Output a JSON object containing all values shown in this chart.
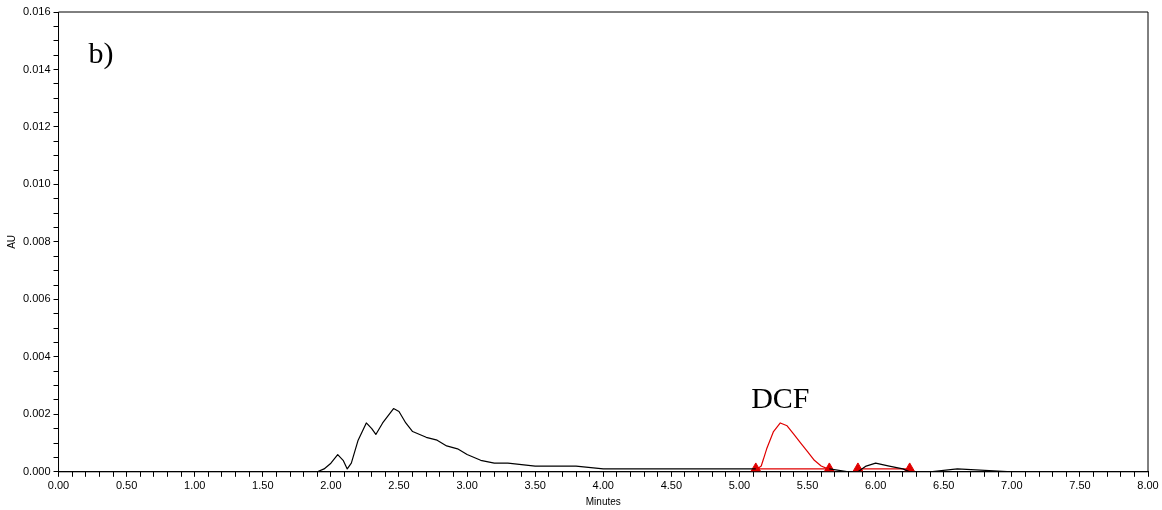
{
  "chart_data": {
    "type": "line",
    "xlabel": "Minutes",
    "ylabel": "AU",
    "annotations": [
      "b)",
      {
        "text": "DCF",
        "x": 5.3,
        "y": 0.0017
      }
    ],
    "xlim": [
      0,
      8
    ],
    "ylim": [
      0,
      0.016
    ],
    "grid": false,
    "legend": false,
    "marker": "none",
    "line_style": "solid",
    "xticks": [
      {
        "value": 0,
        "label": "0.00"
      },
      {
        "value": 0.1,
        "label": null
      },
      {
        "value": 0.2,
        "label": null
      },
      {
        "value": 0.3,
        "label": null
      },
      {
        "value": 0.4,
        "label": null
      },
      {
        "value": 0.5,
        "label": "0.50"
      },
      {
        "value": 0.6,
        "label": null
      },
      {
        "value": 0.7,
        "label": null
      },
      {
        "value": 0.8,
        "label": null
      },
      {
        "value": 0.9,
        "label": null
      },
      {
        "value": 1,
        "label": "1.00"
      },
      {
        "value": 1.1,
        "label": null
      },
      {
        "value": 1.2,
        "label": null
      },
      {
        "value": 1.3,
        "label": null
      },
      {
        "value": 1.4,
        "label": null
      },
      {
        "value": 1.5,
        "label": "1.50"
      },
      {
        "value": 1.6,
        "label": null
      },
      {
        "value": 1.7,
        "label": null
      },
      {
        "value": 1.8,
        "label": null
      },
      {
        "value": 1.9,
        "label": null
      },
      {
        "value": 2,
        "label": "2.00"
      },
      {
        "value": 2.1,
        "label": null
      },
      {
        "value": 2.2,
        "label": null
      },
      {
        "value": 2.3,
        "label": null
      },
      {
        "value": 2.4,
        "label": null
      },
      {
        "value": 2.5,
        "label": "2.50"
      },
      {
        "value": 2.6,
        "label": null
      },
      {
        "value": 2.7,
        "label": null
      },
      {
        "value": 2.8,
        "label": null
      },
      {
        "value": 2.9,
        "label": null
      },
      {
        "value": 3,
        "label": "3.00"
      },
      {
        "value": 3.1,
        "label": null
      },
      {
        "value": 3.2,
        "label": null
      },
      {
        "value": 3.3,
        "label": null
      },
      {
        "value": 3.4,
        "label": null
      },
      {
        "value": 3.5,
        "label": "3.50"
      },
      {
        "value": 3.6,
        "label": null
      },
      {
        "value": 3.7,
        "label": null
      },
      {
        "value": 3.8,
        "label": null
      },
      {
        "value": 3.9,
        "label": null
      },
      {
        "value": 4,
        "label": "4.00"
      },
      {
        "value": 4.1,
        "label": null
      },
      {
        "value": 4.2,
        "label": null
      },
      {
        "value": 4.3,
        "label": null
      },
      {
        "value": 4.4,
        "label": null
      },
      {
        "value": 4.5,
        "label": "4.50"
      },
      {
        "value": 4.6,
        "label": null
      },
      {
        "value": 4.7,
        "label": null
      },
      {
        "value": 4.8,
        "label": null
      },
      {
        "value": 4.9,
        "label": null
      },
      {
        "value": 5,
        "label": "5.00"
      },
      {
        "value": 5.1,
        "label": null
      },
      {
        "value": 5.2,
        "label": null
      },
      {
        "value": 5.3,
        "label": null
      },
      {
        "value": 5.4,
        "label": null
      },
      {
        "value": 5.5,
        "label": "5.50"
      },
      {
        "value": 5.6,
        "label": null
      },
      {
        "value": 5.7,
        "label": null
      },
      {
        "value": 5.8,
        "label": null
      },
      {
        "value": 5.9,
        "label": null
      },
      {
        "value": 6,
        "label": "6.00"
      },
      {
        "value": 6.1,
        "label": null
      },
      {
        "value": 6.2,
        "label": null
      },
      {
        "value": 6.3,
        "label": null
      },
      {
        "value": 6.4,
        "label": null
      },
      {
        "value": 6.5,
        "label": "6.50"
      },
      {
        "value": 6.6,
        "label": null
      },
      {
        "value": 6.7,
        "label": null
      },
      {
        "value": 6.8,
        "label": null
      },
      {
        "value": 6.9,
        "label": null
      },
      {
        "value": 7,
        "label": "7.00"
      },
      {
        "value": 7.1,
        "label": null
      },
      {
        "value": 7.2,
        "label": null
      },
      {
        "value": 7.3,
        "label": null
      },
      {
        "value": 7.4,
        "label": null
      },
      {
        "value": 7.5,
        "label": "7.50"
      },
      {
        "value": 7.6,
        "label": null
      },
      {
        "value": 7.7,
        "label": null
      },
      {
        "value": 7.8,
        "label": null
      },
      {
        "value": 7.9,
        "label": null
      },
      {
        "value": 8,
        "label": "8.00"
      }
    ],
    "yticks": [
      {
        "value": 0,
        "label": "0.000"
      },
      {
        "value": 0.0005,
        "label": null
      },
      {
        "value": 0.001,
        "label": null
      },
      {
        "value": 0.0015,
        "label": null
      },
      {
        "value": 0.002,
        "label": "0.002"
      },
      {
        "value": 0.0025,
        "label": null
      },
      {
        "value": 0.003,
        "label": null
      },
      {
        "value": 0.0035,
        "label": null
      },
      {
        "value": 0.004,
        "label": "0.004"
      },
      {
        "value": 0.0045,
        "label": null
      },
      {
        "value": 0.005,
        "label": null
      },
      {
        "value": 0.0055,
        "label": null
      },
      {
        "value": 0.006,
        "label": "0.006"
      },
      {
        "value": 0.0065,
        "label": null
      },
      {
        "value": 0.007,
        "label": null
      },
      {
        "value": 0.0075,
        "label": null
      },
      {
        "value": 0.008,
        "label": "0.008"
      },
      {
        "value": 0.0085,
        "label": null
      },
      {
        "value": 0.009,
        "label": null
      },
      {
        "value": 0.0095,
        "label": null
      },
      {
        "value": 0.01,
        "label": "0.010"
      },
      {
        "value": 0.0105,
        "label": null
      },
      {
        "value": 0.011,
        "label": null
      },
      {
        "value": 0.0115,
        "label": null
      },
      {
        "value": 0.012,
        "label": "0.012"
      },
      {
        "value": 0.0125,
        "label": null
      },
      {
        "value": 0.013,
        "label": null
      },
      {
        "value": 0.0135,
        "label": null
      },
      {
        "value": 0.014,
        "label": "0.014"
      },
      {
        "value": 0.0145,
        "label": null
      },
      {
        "value": 0.015,
        "label": null
      },
      {
        "value": 0.0155,
        "label": null
      },
      {
        "value": 0.016,
        "label": "0.016"
      }
    ],
    "series": [
      {
        "color": "#000000",
        "x": [
          0,
          0.5,
          1,
          1.5,
          1.9,
          1.95,
          2,
          2.05,
          2.09,
          2.12,
          2.15,
          2.2,
          2.26,
          2.3,
          2.33,
          2.38,
          2.46,
          2.5,
          2.55,
          2.6,
          2.7,
          2.78,
          2.85,
          2.93,
          3,
          3.1,
          3.2,
          3.3,
          3.5,
          3.6,
          3.7,
          3.8,
          4,
          4.5,
          5,
          5.12,
          5.4,
          5.66,
          5.8,
          5.87,
          5.93,
          6,
          6.1,
          6.2,
          6.25,
          6.4,
          6.6,
          7,
          7.5,
          8
        ],
        "values": [
          0,
          0,
          0,
          0,
          0,
          0.0001,
          0.0003,
          0.0006,
          0.0004,
          0.0001,
          0.0003,
          0.0011,
          0.0017,
          0.0015,
          0.0013,
          0.0017,
          0.0022,
          0.0021,
          0.0017,
          0.0014,
          0.0012,
          0.0011,
          0.0009,
          0.0008,
          0.0006,
          0.0004,
          0.0003,
          0.0003,
          0.0002,
          0.0002,
          0.0002,
          0.0002,
          0.0001,
          0.0001,
          0.0001,
          0.0001,
          null,
          0.0001,
          0,
          0,
          0.0002,
          0.0003,
          0.0002,
          0.0001,
          0,
          0,
          0.0001,
          0,
          0,
          0
        ]
      },
      {
        "color": "#e00000",
        "x": [
          5.13,
          5.16,
          5.2,
          5.25,
          5.3,
          5.35,
          5.4,
          5.45,
          5.5,
          5.55,
          5.6,
          5.65
        ],
        "values": [
          0.0001,
          0.0002,
          0.0008,
          0.0014,
          0.0017,
          0.0016,
          0.0013,
          0.001,
          0.0007,
          0.0004,
          0.0002,
          0.0001
        ]
      },
      {
        "color": "#e00000",
        "marker": "triangle",
        "x": [
          5.12,
          5.66
        ],
        "values": [
          0.0001,
          0.0001
        ]
      },
      {
        "color": "#e00000",
        "marker": "triangle",
        "x": [
          5.87,
          6.25
        ],
        "values": [
          0.0001,
          0.0001
        ]
      }
    ]
  }
}
